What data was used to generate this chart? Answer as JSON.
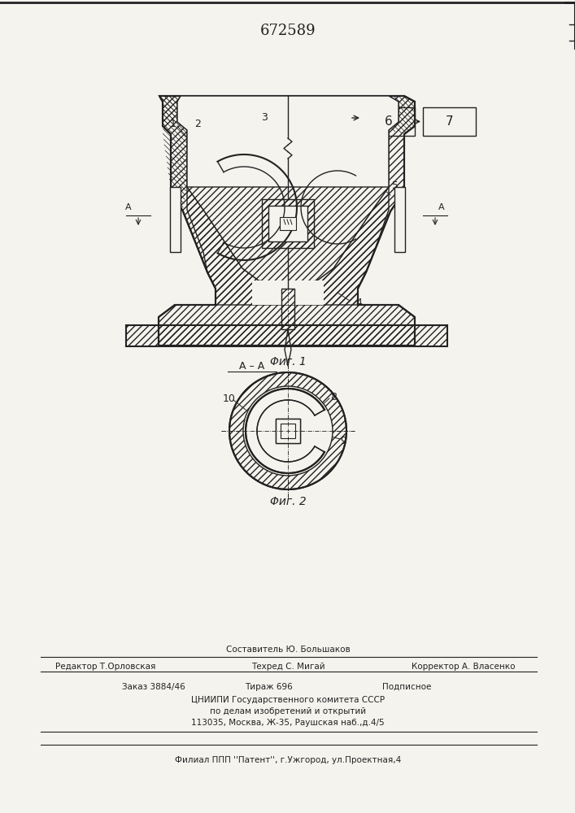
{
  "title_number": "672589",
  "fig1_label": "Φиг. 1",
  "fig2_label": "Φиг. 2",
  "section_label": "A – A",
  "box6_label": "6",
  "box7_label": "7",
  "editor_line": "Редактор Т.Орловская",
  "composer_line": "Составитель Ю. Большаков",
  "techred_line": "Техред С. Мигай",
  "corrector_line": "Корректор А. Власенко",
  "order_line": "Заказ 3884/46",
  "tirazh_line": "Тираж 696",
  "podpisnoe_line": "Подписное",
  "cnipi_line": "ЦНИИПИ Государственного комитета СССР",
  "affairs_line": "по делам изобретений и открытий",
  "address_line": "113035, Москва, Ж-35, Раушская наб.,д.4/5",
  "filial_line": "Филиал ППП ''Патент'', г.Ужгород, ул.Проектная,4",
  "bg_color": "#f5f3ee",
  "line_color": "#222222"
}
